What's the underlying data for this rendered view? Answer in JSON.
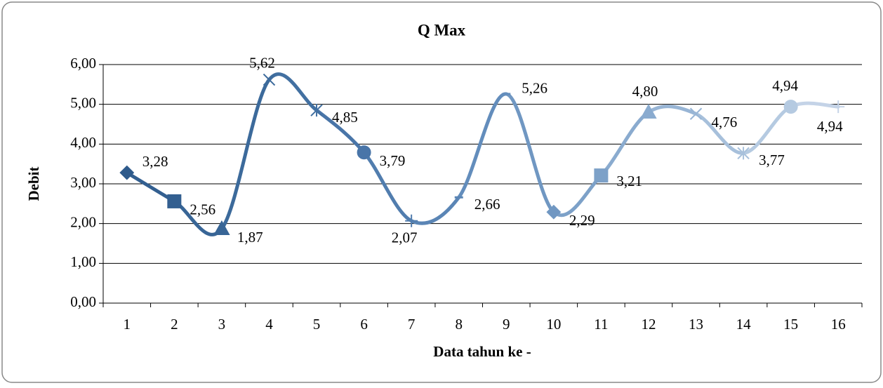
{
  "chart_data": {
    "type": "line",
    "title": "Q Max",
    "xlabel": "Data tahun ke -",
    "ylabel": "Debit",
    "categories": [
      "1",
      "2",
      "3",
      "4",
      "5",
      "6",
      "7",
      "8",
      "9",
      "10",
      "11",
      "12",
      "13",
      "14",
      "15",
      "16"
    ],
    "series": [
      {
        "values": [
          3.28,
          2.56,
          1.87,
          5.62,
          4.85,
          3.79,
          2.07,
          2.66,
          5.26,
          2.29,
          3.21,
          4.8,
          4.76,
          3.77,
          4.94,
          4.94
        ],
        "value_labels": [
          "3,28",
          "2,56",
          "1,87",
          "5,62",
          "4,85",
          "3,79",
          "2,07",
          "2,66",
          "5,26",
          "2,29",
          "3,21",
          "4,80",
          "4,76",
          "3,77",
          "4,94",
          "4,94"
        ],
        "colors": [
          "#2e5a8b",
          "#335f90",
          "#386596",
          "#3c6a9b",
          "#4270a1",
          "#4975a8",
          "#517dae",
          "#5a85b5",
          "#638dbc",
          "#7097c2",
          "#7da1c8",
          "#8aabcf",
          "#98b5d5",
          "#a7c0db",
          "#b5cae1",
          "#c4d3e7"
        ],
        "markers": [
          "diamond",
          "square",
          "triangle",
          "x",
          "star",
          "circle",
          "plus",
          "dash",
          "dash",
          "diamond",
          "square",
          "triangle",
          "x",
          "star",
          "circle",
          "plus"
        ]
      }
    ],
    "ylim": [
      0,
      6
    ],
    "yticks": [
      {
        "value": 0,
        "label": "0,00"
      },
      {
        "value": 1,
        "label": "1,00"
      },
      {
        "value": 2,
        "label": "2,00"
      },
      {
        "value": 3,
        "label": "3,00"
      },
      {
        "value": 4,
        "label": "4,00"
      },
      {
        "value": 5,
        "label": "5,00"
      },
      {
        "value": 6,
        "label": "6,00"
      }
    ],
    "grid": true,
    "smooth": true
  }
}
